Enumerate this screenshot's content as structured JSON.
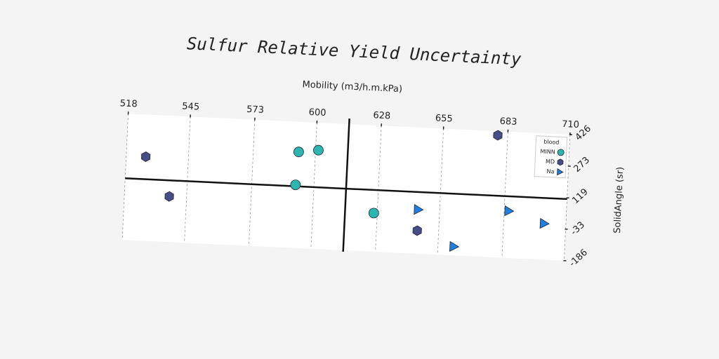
{
  "chart_data": {
    "type": "scatter",
    "title": "Sulfur Relative Yield Uncertainty",
    "x_label": "Mobility (m3/h.m.kPa)",
    "y_label": "SolidAngle (sr)",
    "xlim": [
      518,
      710
    ],
    "xticks": [
      518,
      545,
      573,
      600,
      628,
      655,
      683,
      710
    ],
    "ylim": [
      -186,
      426
    ],
    "yticks": [
      -186,
      -33,
      119,
      273,
      426
    ],
    "grid": true,
    "legend_title": "blood",
    "legend": "upper right",
    "crosshair": {
      "x": 614,
      "y": 113
    },
    "series": [
      {
        "name": "MINN",
        "color": "#2bb7b0",
        "marker": "circle",
        "x": [
          592.7,
          601.2,
          592,
          626.5
        ],
        "values": [
          280,
          293,
          120,
          1
        ]
      },
      {
        "name": "MD",
        "color": "#474d86",
        "marker": "hexagon",
        "x": [
          526.5,
          537.5,
          645.7,
          678.7
        ],
        "values": [
          222,
          35,
          -74,
          406
        ]
      },
      {
        "name": "Na",
        "color": "#1f7fe0",
        "marker": "triangle",
        "x": [
          645.7,
          661.9,
          685,
          700.6
        ],
        "values": [
          28,
          -143,
          42,
          -11
        ]
      }
    ]
  }
}
